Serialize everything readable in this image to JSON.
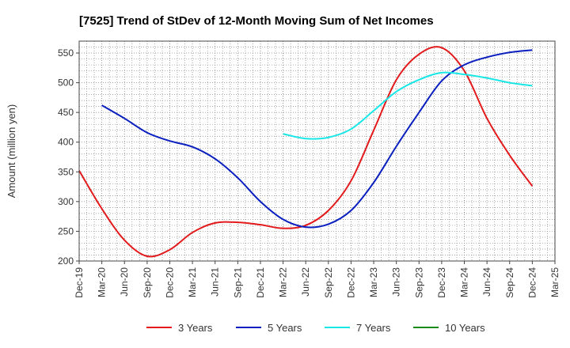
{
  "chart_data": {
    "type": "line",
    "title": "[7525]  Trend of StDev of 12-Month Moving Sum of Net Incomes",
    "xlabel": "",
    "ylabel": "Amount (million yen)",
    "ylim": [
      200,
      570
    ],
    "yticks": [
      200,
      250,
      300,
      350,
      400,
      450,
      500,
      550
    ],
    "grid": true,
    "legend_position": "bottom",
    "x_tick_labels": [
      "Dec-19",
      "Mar-20",
      "Jun-20",
      "Sep-20",
      "Dec-20",
      "Mar-21",
      "Jun-21",
      "Sep-21",
      "Dec-21",
      "Mar-22",
      "Jun-22",
      "Sep-22",
      "Dec-22",
      "Mar-23",
      "Jun-23",
      "Sep-23",
      "Dec-23",
      "Mar-24",
      "Jun-24",
      "Sep-24",
      "Dec-24",
      "Mar-25"
    ],
    "series": [
      {
        "name": "3 Years",
        "color": "#e31a1c",
        "points": [
          [
            0,
            352
          ],
          [
            1,
            288
          ],
          [
            2,
            235
          ],
          [
            3,
            208
          ],
          [
            4,
            219
          ],
          [
            5,
            248
          ],
          [
            6,
            264
          ],
          [
            7,
            265
          ],
          [
            8,
            261
          ],
          [
            9,
            255
          ],
          [
            10,
            260
          ],
          [
            11,
            285
          ],
          [
            12,
            335
          ],
          [
            13,
            420
          ],
          [
            14,
            505
          ],
          [
            15,
            548
          ],
          [
            16,
            559
          ],
          [
            17,
            520
          ],
          [
            18,
            440
          ],
          [
            19,
            378
          ],
          [
            20,
            326
          ]
        ]
      },
      {
        "name": "5 Years",
        "color": "#0a1fbf",
        "points": [
          [
            1,
            462
          ],
          [
            2,
            440
          ],
          [
            3,
            416
          ],
          [
            4,
            402
          ],
          [
            5,
            392
          ],
          [
            6,
            372
          ],
          [
            7,
            340
          ],
          [
            8,
            300
          ],
          [
            9,
            270
          ],
          [
            10,
            257
          ],
          [
            11,
            262
          ],
          [
            12,
            285
          ],
          [
            13,
            332
          ],
          [
            14,
            393
          ],
          [
            15,
            450
          ],
          [
            16,
            503
          ],
          [
            17,
            530
          ],
          [
            18,
            543
          ],
          [
            19,
            551
          ],
          [
            20,
            555
          ]
        ]
      },
      {
        "name": "7 Years",
        "color": "#19e6e6",
        "points": [
          [
            9,
            414
          ],
          [
            10,
            406
          ],
          [
            11,
            408
          ],
          [
            12,
            422
          ],
          [
            13,
            453
          ],
          [
            14,
            485
          ],
          [
            15,
            505
          ],
          [
            16,
            517
          ],
          [
            17,
            514
          ],
          [
            18,
            508
          ],
          [
            19,
            500
          ],
          [
            20,
            495
          ]
        ]
      },
      {
        "name": "10 Years",
        "color": "#1a8a1a",
        "points": []
      }
    ]
  }
}
